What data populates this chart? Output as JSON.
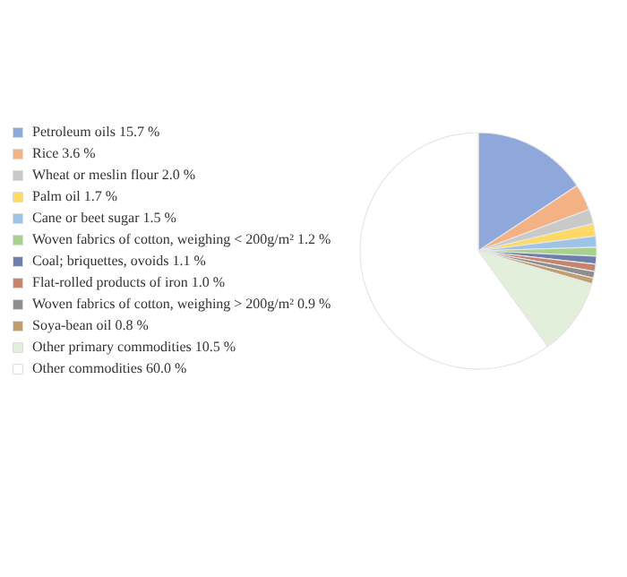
{
  "chart_data": {
    "type": "pie",
    "categories": [
      "Petroleum oils",
      "Rice",
      "Wheat or meslin flour",
      "Palm oil",
      "Cane or beet sugar",
      "Woven fabrics of cotton, weighing  < 200g/m² ",
      "Coal; briquettes, ovoids",
      "Flat-rolled products of iron",
      "Woven fabrics of cotton, weighing  >  200g/m² ",
      "Soya-bean oil ",
      "Other primary commodities",
      "Other commodities"
    ],
    "values": [
      15.7,
      3.6,
      2.0,
      1.7,
      1.5,
      1.2,
      1.1,
      1.0,
      0.9,
      0.8,
      10.5,
      60.0
    ],
    "value_labels": [
      "15.7 %",
      "3.6 %",
      "2.0 %",
      "1.7 %",
      "1.5 %",
      "1.2 %",
      "1.1 %",
      "1.0 %",
      "0.9 %",
      "0.8 %",
      "10.5 %",
      "60.0 %"
    ],
    "colors": [
      "#8fa8dc",
      "#f4b183",
      "#c9c9c9",
      "#ffd966",
      "#9dc3e6",
      "#a9d18e",
      "#6f7fab",
      "#c8836c",
      "#8e8e8e",
      "#bf9f6e",
      "#e2efda",
      "#ffffff"
    ],
    "legend": "left"
  }
}
